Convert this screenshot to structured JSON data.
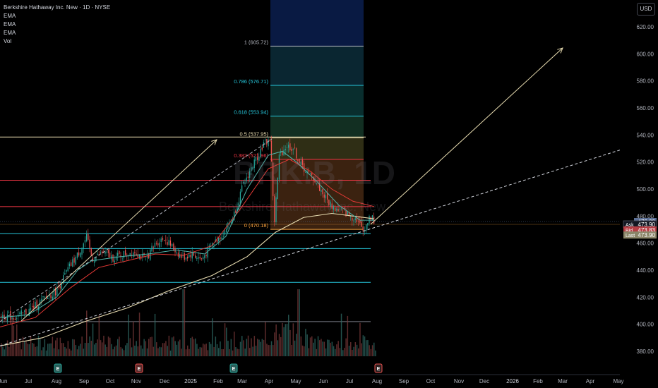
{
  "legend": {
    "title": "Berkshire Hathaway Inc. New · 1D · NYSE",
    "indicators": [
      "EMA",
      "EMA",
      "EMA",
      "Vol"
    ]
  },
  "currency": "USD",
  "watermark": {
    "symbol": "BRK.B, 1D",
    "name": "Berkshire Hathaway Inc. New"
  },
  "colors": {
    "background": "#000000",
    "up": "#26a69a",
    "down": "#ef5350",
    "ema_short": "#4fb3a9",
    "ema_mid": "#e53935",
    "ema_long": "#e8dcb0",
    "fib_line": "#26c6da",
    "fib_red": "#f23645",
    "trend": "#e8dcb0",
    "axis_text": "#b2b5be"
  },
  "chart_data": {
    "type": "candlestick",
    "title": "Berkshire Hathaway Inc. New · 1D · NYSE",
    "x_ticks": [
      "Jun",
      "Jul",
      "Aug",
      "Sep",
      "Oct",
      "Nov",
      "Dec",
      "2025",
      "Feb",
      "Mar",
      "Apr",
      "May",
      "Jun",
      "Jul",
      "Aug",
      "Sep",
      "Oct",
      "Nov",
      "Dec",
      "2026",
      "Feb",
      "Mar",
      "Apr",
      "May"
    ],
    "y_ticks": [
      380,
      400,
      420,
      440,
      460,
      480,
      500,
      520,
      540,
      560,
      580,
      600,
      620
    ],
    "ylim": [
      370,
      630
    ],
    "price_labels": [
      {
        "label": "Ask",
        "value": "473.90",
        "price": 473.9,
        "color": "#131722"
      },
      {
        "label": "Bid",
        "value": "473.83",
        "price": 469.8,
        "color": "#b63e45"
      },
      {
        "label": "Last",
        "value": "473.90",
        "price": 466.0,
        "color": "#8a8568"
      }
    ],
    "last_price_tag": {
      "value": "476.00",
      "price": 476.0,
      "color": "#5b6f95"
    },
    "fib_levels": [
      {
        "ratio": "1",
        "price": 605.72,
        "label": "1 (605.72)",
        "color": "#b2b5be"
      },
      {
        "ratio": "0.786",
        "price": 576.71,
        "label": "0.786 (576.71)",
        "color": "#26c6da"
      },
      {
        "ratio": "0.618",
        "price": 553.94,
        "label": "0.618 (553.94)",
        "color": "#26c6da"
      },
      {
        "ratio": "0.5",
        "price": 537.95,
        "label": "0.5 (537.95)",
        "color": "#e8dcb0"
      },
      {
        "ratio": "0.382",
        "price": 521.96,
        "label": "0.382 (521.96)",
        "color": "#f23645"
      },
      {
        "ratio": "0",
        "price": 470.18,
        "label": "0 (470.18)",
        "color": "#f7a03c"
      }
    ],
    "horizontal_levels": [
      {
        "price": 538.5,
        "color": "#e8dcb0"
      },
      {
        "price": 506.5,
        "color": "#f23645"
      },
      {
        "price": 487.0,
        "color": "#f23645"
      },
      {
        "price": 467.0,
        "color": "#26c6da"
      },
      {
        "price": 456.0,
        "color": "#26c6da"
      },
      {
        "price": 431.0,
        "color": "#26c6da"
      },
      {
        "price": 402.0,
        "color": "#787b86"
      }
    ],
    "earnings_markers": [
      {
        "x": 82,
        "label": "E",
        "kind": "past"
      },
      {
        "x": 197,
        "label": "E",
        "kind": "past-red"
      },
      {
        "x": 331,
        "label": "E",
        "kind": "past"
      },
      {
        "x": 536,
        "label": "E",
        "kind": "future"
      }
    ],
    "price_path": [
      [
        0,
        407
      ],
      [
        20,
        405
      ],
      [
        40,
        410
      ],
      [
        60,
        418
      ],
      [
        80,
        425
      ],
      [
        95,
        440
      ],
      [
        110,
        452
      ],
      [
        122,
        464
      ],
      [
        130,
        448
      ],
      [
        145,
        453
      ],
      [
        160,
        449
      ],
      [
        175,
        452
      ],
      [
        190,
        454
      ],
      [
        205,
        448
      ],
      [
        220,
        460
      ],
      [
        232,
        464
      ],
      [
        245,
        456
      ],
      [
        258,
        449
      ],
      [
        270,
        452
      ],
      [
        285,
        448
      ],
      [
        300,
        459
      ],
      [
        315,
        467
      ],
      [
        330,
        480
      ],
      [
        342,
        500
      ],
      [
        352,
        512
      ],
      [
        362,
        522
      ],
      [
        372,
        533
      ],
      [
        382,
        537
      ],
      [
        388,
        475
      ],
      [
        395,
        525
      ],
      [
        405,
        532
      ],
      [
        415,
        530
      ],
      [
        425,
        518
      ],
      [
        435,
        512
      ],
      [
        445,
        507
      ],
      [
        455,
        498
      ],
      [
        465,
        490
      ],
      [
        475,
        485
      ],
      [
        485,
        484
      ],
      [
        495,
        480
      ],
      [
        505,
        478
      ],
      [
        513,
        469
      ],
      [
        520,
        476
      ],
      [
        525,
        479
      ],
      [
        530,
        476
      ]
    ],
    "ema_short": [
      [
        0,
        405
      ],
      [
        40,
        407
      ],
      [
        80,
        420
      ],
      [
        110,
        440
      ],
      [
        130,
        447
      ],
      [
        170,
        450
      ],
      [
        210,
        452
      ],
      [
        250,
        455
      ],
      [
        290,
        452
      ],
      [
        320,
        465
      ],
      [
        350,
        500
      ],
      [
        380,
        525
      ],
      [
        400,
        528
      ],
      [
        420,
        520
      ],
      [
        450,
        505
      ],
      [
        480,
        488
      ],
      [
        510,
        477
      ],
      [
        530,
        477
      ]
    ],
    "ema_mid": [
      [
        0,
        398
      ],
      [
        50,
        405
      ],
      [
        100,
        427
      ],
      [
        140,
        442
      ],
      [
        180,
        447
      ],
      [
        220,
        452
      ],
      [
        260,
        451
      ],
      [
        300,
        458
      ],
      [
        340,
        485
      ],
      [
        380,
        515
      ],
      [
        410,
        522
      ],
      [
        440,
        513
      ],
      [
        470,
        500
      ],
      [
        500,
        491
      ],
      [
        530,
        487
      ]
    ],
    "ema_long": [
      [
        0,
        384
      ],
      [
        60,
        390
      ],
      [
        120,
        402
      ],
      [
        180,
        412
      ],
      [
        240,
        425
      ],
      [
        300,
        436
      ],
      [
        350,
        450
      ],
      [
        390,
        468
      ],
      [
        430,
        479
      ],
      [
        470,
        482
      ],
      [
        500,
        480
      ],
      [
        530,
        478
      ]
    ],
    "volume": {
      "baseline_y": 505,
      "max_height": 105
    }
  }
}
